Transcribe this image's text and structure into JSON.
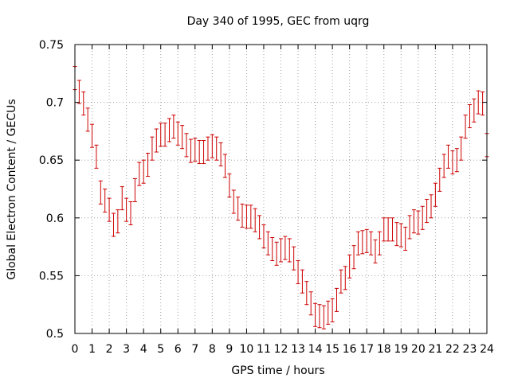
{
  "chart_data": {
    "type": "scatter",
    "title": "Day 340 of 1995, GEC from uqrg",
    "xlabel": "GPS time / hours",
    "ylabel": "Global Electron Content / GECUs",
    "xlim": [
      0,
      24
    ],
    "ylim": [
      0.5,
      0.75
    ],
    "x_ticks": [
      "0",
      "1",
      "2",
      "3",
      "4",
      "5",
      "6",
      "7",
      "8",
      "9",
      "10",
      "11",
      "12",
      "13",
      "14",
      "15",
      "16",
      "17",
      "18",
      "19",
      "20",
      "21",
      "22",
      "23",
      "24"
    ],
    "y_ticks": [
      "0.5",
      "0.55",
      "0.6",
      "0.65",
      "0.7",
      "0.75"
    ],
    "grid": true,
    "color": "#cc0000",
    "error": 0.01,
    "series": [
      {
        "x": [
          0.0,
          0.25,
          0.5,
          0.75,
          1.0,
          1.25,
          1.5,
          1.75,
          2.0,
          2.25,
          2.5,
          2.75,
          3.0,
          3.25,
          3.5,
          3.75,
          4.0,
          4.25,
          4.5,
          4.75,
          5.0,
          5.25,
          5.5,
          5.75,
          6.0,
          6.25,
          6.5,
          6.75,
          7.0,
          7.25,
          7.5,
          7.75,
          8.0,
          8.25,
          8.5,
          8.75,
          9.0,
          9.25,
          9.5,
          9.75,
          10.0,
          10.25,
          10.5,
          10.75,
          11.0,
          11.25,
          11.5,
          11.75,
          12.0,
          12.25,
          12.5,
          12.75,
          13.0,
          13.25,
          13.5,
          13.75,
          14.0,
          14.25,
          14.5,
          14.75,
          15.0,
          15.25,
          15.5,
          15.75,
          16.0,
          16.25,
          16.5,
          16.75,
          17.0,
          17.25,
          17.5,
          17.75,
          18.0,
          18.25,
          18.5,
          18.75,
          19.0,
          19.25,
          19.5,
          19.75,
          20.0,
          20.25,
          20.5,
          20.75,
          21.0,
          21.25,
          21.5,
          21.75,
          22.0,
          22.25,
          22.5,
          22.75,
          23.0,
          23.25,
          23.5,
          23.75,
          24.0
        ],
        "y": [
          0.721,
          0.709,
          0.699,
          0.685,
          0.671,
          0.653,
          0.622,
          0.615,
          0.607,
          0.594,
          0.597,
          0.617,
          0.607,
          0.604,
          0.624,
          0.638,
          0.64,
          0.646,
          0.66,
          0.667,
          0.672,
          0.672,
          0.676,
          0.679,
          0.673,
          0.67,
          0.663,
          0.658,
          0.659,
          0.657,
          0.657,
          0.66,
          0.662,
          0.66,
          0.655,
          0.645,
          0.628,
          0.614,
          0.608,
          0.602,
          0.601,
          0.601,
          0.598,
          0.592,
          0.584,
          0.578,
          0.573,
          0.569,
          0.572,
          0.574,
          0.572,
          0.565,
          0.553,
          0.545,
          0.535,
          0.526,
          0.516,
          0.515,
          0.514,
          0.518,
          0.52,
          0.529,
          0.545,
          0.548,
          0.558,
          0.566,
          0.578,
          0.579,
          0.58,
          0.578,
          0.571,
          0.578,
          0.59,
          0.59,
          0.59,
          0.586,
          0.585,
          0.582,
          0.592,
          0.597,
          0.596,
          0.6,
          0.606,
          0.61,
          0.62,
          0.633,
          0.645,
          0.653,
          0.648,
          0.65,
          0.66,
          0.679,
          0.688,
          0.693,
          0.7,
          0.699,
          0.663
        ]
      }
    ]
  }
}
